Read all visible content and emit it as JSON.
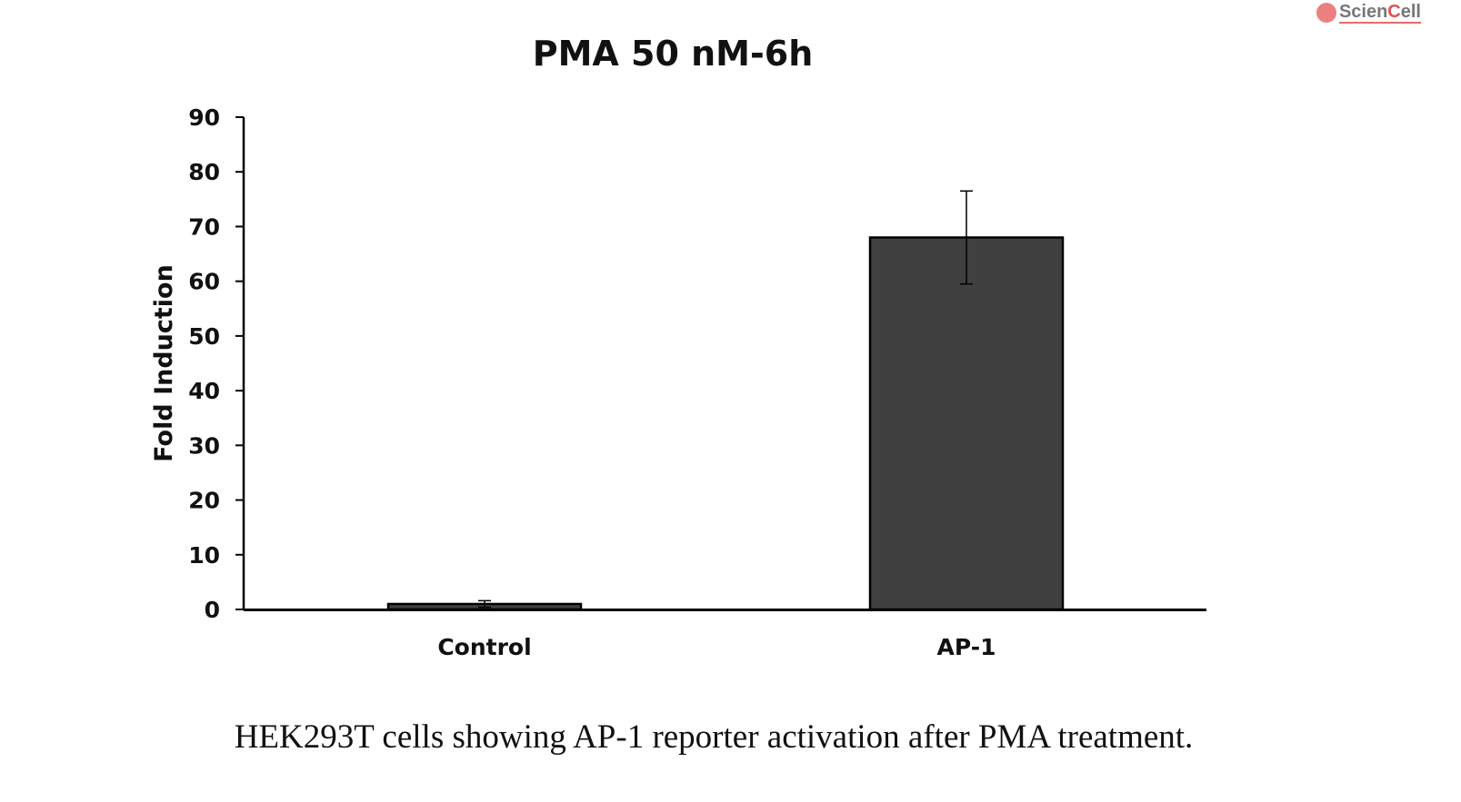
{
  "logo": {
    "text": "ScienCell"
  },
  "caption": "HEK293T  cells  showing AP-1 reporter activation  after PMA treatment.",
  "chart_data": {
    "type": "bar",
    "title": "PMA 50 nM-6h",
    "xlabel": "",
    "ylabel": "Fold Induction",
    "categories": [
      "Control",
      "AP-1"
    ],
    "values": [
      1.0,
      68
    ],
    "errors": [
      0.6,
      8.5
    ],
    "ylim": [
      0,
      90
    ],
    "yticks": [
      0,
      10,
      20,
      30,
      40,
      50,
      60,
      70,
      80,
      90
    ],
    "grid": false,
    "legend": "none",
    "bar_color": "#404040"
  }
}
